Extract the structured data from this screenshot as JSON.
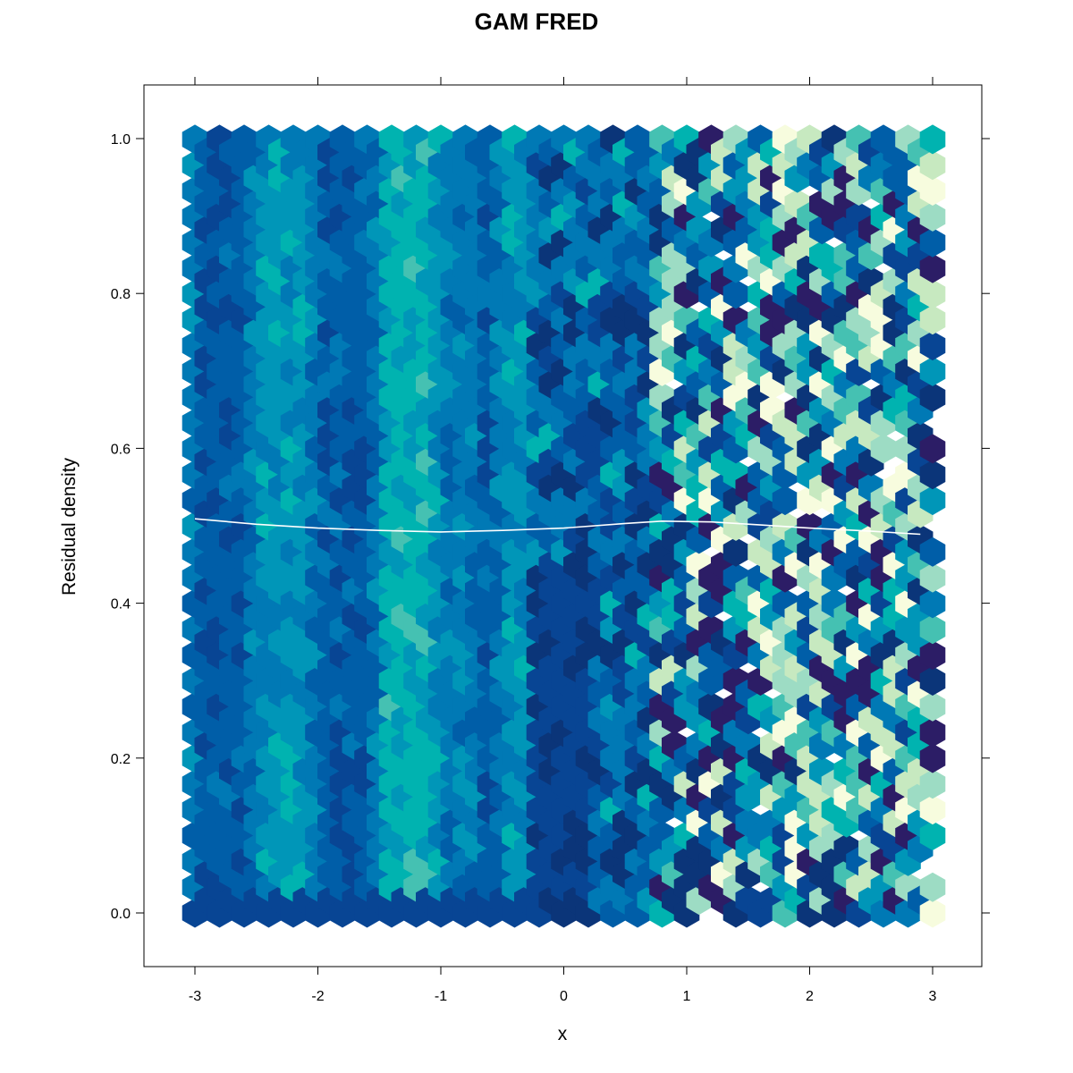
{
  "chart_data": {
    "type": "hexbin",
    "title": "GAM FRED",
    "xlabel": "x",
    "ylabel": "Residual density",
    "xlim": [
      -3.42,
      3.42
    ],
    "ylim": [
      -0.07,
      1.07
    ],
    "x_ticks": [
      -3,
      -2,
      -1,
      0,
      1,
      2,
      3
    ],
    "y_ticks": [
      0.0,
      0.2,
      0.4,
      0.6,
      0.8,
      1.0
    ],
    "x_tick_labels": [
      "-3",
      "-2",
      "-1",
      "0",
      "1",
      "2",
      "3"
    ],
    "y_tick_labels": [
      "0.0",
      "0.2",
      "0.4",
      "0.6",
      "0.8",
      "1.0"
    ],
    "grid": false,
    "legend": "none",
    "color_scale": [
      "#f7fcde",
      "#c7e9c0",
      "#9ddcc4",
      "#45c1b2",
      "#00b3b0",
      "#0096b8",
      "#0079b5",
      "#005ea8",
      "#084594",
      "#0b3579",
      "#2c1d66"
    ],
    "hex_grid": {
      "x_values": [
        -3.0,
        -2.9,
        -2.8,
        -2.7,
        -2.6,
        -2.5,
        -2.4,
        -2.3,
        -2.2,
        -2.1,
        -2.0,
        -1.9,
        -1.8,
        -1.7,
        -1.6,
        -1.5,
        -1.4,
        -1.3,
        -1.2,
        -1.1,
        -1.0,
        -0.9,
        -0.8,
        -0.7,
        -0.6,
        -0.5,
        -0.4,
        -0.3,
        -0.2,
        -0.1,
        0.0,
        0.1,
        0.2,
        0.3,
        0.4,
        0.5,
        0.6,
        0.7,
        0.8,
        0.9,
        1.0,
        1.1,
        1.2,
        1.3,
        1.4,
        1.5,
        1.6,
        1.7,
        1.8,
        1.9,
        2.0,
        2.1,
        2.2,
        2.3,
        2.4,
        2.5,
        2.6,
        2.7,
        2.8,
        2.9,
        3.0
      ],
      "y_start": 0.0,
      "y_step": 0.0333,
      "y_count": 31
    },
    "smooth_line": {
      "name": "",
      "color": "#ffffff",
      "x": [
        -3.0,
        -2.5,
        -2.0,
        -1.5,
        -1.0,
        -0.5,
        0.0,
        0.5,
        0.8,
        1.2,
        1.6,
        2.0,
        2.5,
        2.9
      ],
      "y": [
        0.509,
        0.502,
        0.497,
        0.494,
        0.492,
        0.494,
        0.497,
        0.503,
        0.506,
        0.505,
        0.501,
        0.497,
        0.493,
        0.489
      ]
    }
  }
}
